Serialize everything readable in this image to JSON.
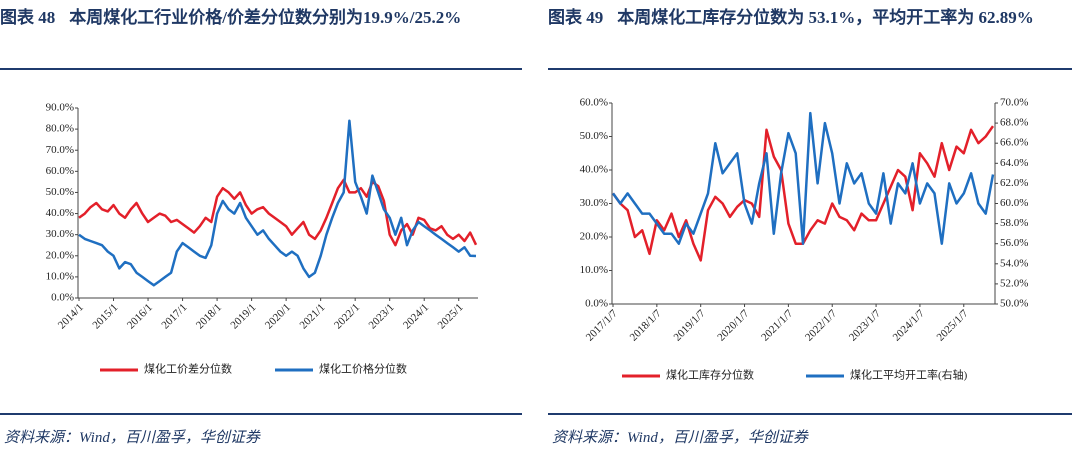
{
  "chart_data": [
    {
      "type": "line",
      "figure_label": "图表 48",
      "title": "本周煤化工行业价格/价差分位数分别为19.9%/25.2%",
      "source": "资料来源：Wind，百川盈孚，华创证券",
      "x": [
        "2014/1",
        "2014/3",
        "2014/5",
        "2014/7",
        "2014/9",
        "2014/11",
        "2015/1",
        "2015/3",
        "2015/5",
        "2015/7",
        "2015/9",
        "2015/11",
        "2016/1",
        "2016/3",
        "2016/5",
        "2016/7",
        "2016/9",
        "2016/11",
        "2017/1",
        "2017/3",
        "2017/5",
        "2017/7",
        "2017/9",
        "2017/11",
        "2018/1",
        "2018/3",
        "2018/5",
        "2018/7",
        "2018/9",
        "2018/11",
        "2019/1",
        "2019/3",
        "2019/5",
        "2019/7",
        "2019/9",
        "2019/11",
        "2020/1",
        "2020/3",
        "2020/5",
        "2020/7",
        "2020/9",
        "2020/11",
        "2021/1",
        "2021/3",
        "2021/5",
        "2021/7",
        "2021/9",
        "2021/11",
        "2022/1",
        "2022/3",
        "2022/5",
        "2022/7",
        "2022/9",
        "2022/11",
        "2023/1",
        "2023/3",
        "2023/5",
        "2023/7",
        "2023/9",
        "2023/11",
        "2024/1",
        "2024/3",
        "2024/5",
        "2024/7",
        "2024/9",
        "2024/11",
        "2025/1",
        "2025/3",
        "2025/5",
        "2025/7"
      ],
      "xticks": [
        "2014/1",
        "2015/1",
        "2016/1",
        "2017/1",
        "2018/1",
        "2019/1",
        "2020/1",
        "2021/1",
        "2022/1",
        "2023/1",
        "2024/1",
        "2025/1"
      ],
      "ylim": [
        0,
        90
      ],
      "yticks": [
        {
          "value": 0,
          "label": "0.0%"
        },
        {
          "value": 10,
          "label": "10.0%"
        },
        {
          "value": 20,
          "label": "20.0%"
        },
        {
          "value": 30,
          "label": "30.0%"
        },
        {
          "value": 40,
          "label": "40.0%"
        },
        {
          "value": 50,
          "label": "50.0%"
        },
        {
          "value": 60,
          "label": "60.0%"
        },
        {
          "value": 70,
          "label": "70.0%"
        },
        {
          "value": 80,
          "label": "80.0%"
        },
        {
          "value": 90,
          "label": "90.0%"
        }
      ],
      "series": [
        {
          "name": "煤化工价差分位数",
          "color": "#e3202a",
          "values": [
            38,
            40,
            43,
            45,
            42,
            41,
            44,
            40,
            38,
            42,
            45,
            40,
            36,
            38,
            40,
            39,
            36,
            37,
            35,
            33,
            31,
            34,
            38,
            36,
            48,
            52,
            50,
            47,
            50,
            44,
            40,
            42,
            43,
            40,
            38,
            36,
            34,
            30,
            33,
            36,
            30,
            28,
            32,
            38,
            45,
            52,
            56,
            50,
            50,
            52,
            48,
            55,
            53,
            46,
            30,
            25,
            32,
            35,
            30,
            38,
            37,
            33,
            32,
            34,
            30,
            28,
            30,
            27,
            31,
            25.2
          ]
        },
        {
          "name": "煤化工价格分位数",
          "color": "#1f6fc1",
          "values": [
            30,
            28,
            27,
            26,
            25,
            22,
            20,
            14,
            17,
            16,
            12,
            10,
            8,
            6,
            8,
            10,
            12,
            22,
            26,
            24,
            22,
            20,
            19,
            25,
            40,
            46,
            42,
            40,
            45,
            38,
            34,
            30,
            32,
            28,
            25,
            22,
            20,
            22,
            20,
            14,
            10,
            12,
            20,
            30,
            38,
            45,
            50,
            84,
            55,
            48,
            40,
            58,
            50,
            42,
            38,
            30,
            38,
            25,
            32,
            36,
            34,
            32,
            30,
            28,
            26,
            24,
            22,
            24,
            20,
            19.9
          ]
        }
      ]
    },
    {
      "type": "line",
      "figure_label": "图表 49",
      "title": "本周煤化工库存分位数为 53.1%，平均开工率为 62.89%",
      "source": "资料来源：Wind，百川盈孚，华创证券",
      "x": [
        "2017/1/7",
        "2017/3/7",
        "2017/5/7",
        "2017/7/7",
        "2017/9/7",
        "2017/11/7",
        "2018/1/7",
        "2018/3/7",
        "2018/5/7",
        "2018/7/7",
        "2018/9/7",
        "2018/11/7",
        "2019/1/7",
        "2019/3/7",
        "2019/5/7",
        "2019/7/7",
        "2019/9/7",
        "2019/11/7",
        "2020/1/7",
        "2020/3/7",
        "2020/5/7",
        "2020/7/7",
        "2020/9/7",
        "2020/11/7",
        "2021/1/7",
        "2021/3/7",
        "2021/5/7",
        "2021/7/7",
        "2021/9/7",
        "2021/11/7",
        "2022/1/7",
        "2022/3/7",
        "2022/5/7",
        "2022/7/7",
        "2022/9/7",
        "2022/11/7",
        "2023/1/7",
        "2023/3/7",
        "2023/5/7",
        "2023/7/7",
        "2023/9/7",
        "2023/11/7",
        "2024/1/7",
        "2024/3/7",
        "2024/5/7",
        "2024/7/7",
        "2024/9/7",
        "2024/11/7",
        "2025/1/7",
        "2025/3/7",
        "2025/5/7",
        "2025/7/7",
        "2025/9/7"
      ],
      "xticks": [
        "2017/1/7",
        "2018/1/7",
        "2019/1/7",
        "2020/1/7",
        "2021/1/7",
        "2022/1/7",
        "2023/1/7",
        "2024/1/7",
        "2025/1/7"
      ],
      "ylim": [
        0,
        60
      ],
      "yticks": [
        {
          "value": 0,
          "label": "0.0%"
        },
        {
          "value": 10,
          "label": "10.0%"
        },
        {
          "value": 20,
          "label": "20.0%"
        },
        {
          "value": 30,
          "label": "30.0%"
        },
        {
          "value": 40,
          "label": "40.0%"
        },
        {
          "value": 50,
          "label": "50.0%"
        },
        {
          "value": 60,
          "label": "60.0%"
        }
      ],
      "y2lim": [
        50,
        70
      ],
      "y2ticks": [
        {
          "value": 50,
          "label": "50.0%"
        },
        {
          "value": 52,
          "label": "52.0%"
        },
        {
          "value": 54,
          "label": "54.0%"
        },
        {
          "value": 56,
          "label": "56.0%"
        },
        {
          "value": 58,
          "label": "58.0%"
        },
        {
          "value": 60,
          "label": "60.0%"
        },
        {
          "value": 62,
          "label": "62.0%"
        },
        {
          "value": 64,
          "label": "64.0%"
        },
        {
          "value": 66,
          "label": "66.0%"
        },
        {
          "value": 68,
          "label": "68.0%"
        },
        {
          "value": 70,
          "label": "70.0%"
        }
      ],
      "series": [
        {
          "name": "煤化工库存分位数",
          "color": "#e3202a",
          "values": [
            33,
            30,
            28,
            20,
            22,
            15,
            25,
            22,
            27,
            20,
            25,
            18,
            13,
            28,
            32,
            30,
            26,
            29,
            31,
            30,
            26,
            52,
            44,
            40,
            24,
            18,
            18,
            22,
            25,
            24,
            30,
            26,
            25,
            22,
            27,
            25,
            25,
            30,
            35,
            40,
            38,
            28,
            45,
            42,
            38,
            48,
            40,
            47,
            45,
            52,
            48,
            50,
            53.1
          ]
        },
        {
          "name": "煤化工平均开工率(右轴)",
          "color": "#1f6fc1",
          "axis": "y2",
          "values": [
            61,
            60,
            61,
            60,
            59,
            59,
            58,
            57,
            57,
            56,
            58,
            57,
            59,
            61,
            66,
            63,
            64,
            65,
            60,
            58,
            62,
            65,
            57,
            63,
            67,
            65,
            56,
            69,
            62,
            68,
            65,
            60,
            64,
            62,
            63,
            60,
            59,
            63,
            58,
            62,
            61,
            64,
            60,
            62,
            61,
            56,
            62,
            60,
            61,
            63,
            60,
            59,
            62.89
          ]
        }
      ]
    }
  ]
}
